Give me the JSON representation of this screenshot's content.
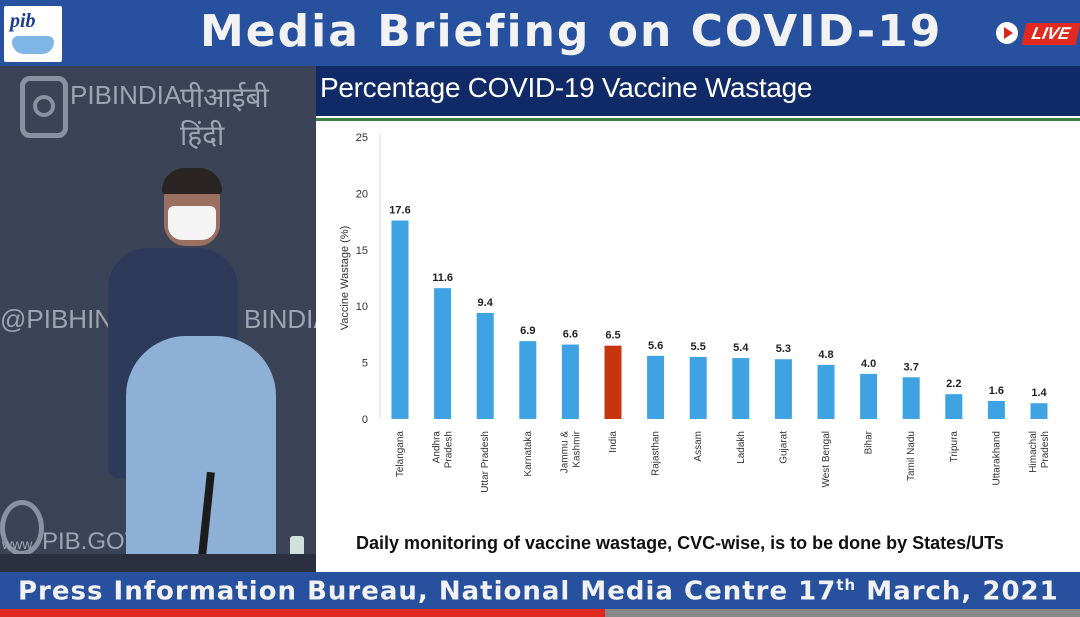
{
  "header": {
    "logo_text": "pib",
    "title": "Media Briefing on COVID-19",
    "live_label": "LIVE"
  },
  "video_backdrop": {
    "handle_1": "PIBINDIA",
    "hindi_text": "पीआईबी हिंदी",
    "handle_2": "@PIBHINDI",
    "handle_3": "BINDIA",
    "website": "PIB.GOV",
    "globe_text": "www"
  },
  "chart_panel": {
    "title": "Percentage COVID-19 Vaccine Wastage",
    "footnote": "Daily monitoring of vaccine wastage, CVC-wise, is to be done by States/UTs"
  },
  "chart_data": {
    "type": "bar",
    "title": "Percentage COVID-19 Vaccine Wastage",
    "ylabel": "Vaccine Wastage (%)",
    "xlabel": "",
    "ylim": [
      0,
      25
    ],
    "yticks": [
      0,
      5,
      10,
      15,
      20,
      25
    ],
    "grid": false,
    "categories": [
      "Telangana",
      "Andhra Pradesh",
      "Uttar Pradesh",
      "Karnataka",
      "Jammu & Kashmir",
      "India",
      "Rajasthan",
      "Assam",
      "Ladakh",
      "Gujarat",
      "West Bengal",
      "Bihar",
      "Tamil Nadu",
      "Tripura",
      "Uttarakhand",
      "Himachal Pradesh"
    ],
    "category_label_lines": [
      [
        "Telangana"
      ],
      [
        "Andhra",
        "Pradesh"
      ],
      [
        "Uttar Pradesh"
      ],
      [
        "Karnataka"
      ],
      [
        "Jammu &",
        "Kashmir"
      ],
      [
        "India"
      ],
      [
        "Rajasthan"
      ],
      [
        "Assam"
      ],
      [
        "Ladakh"
      ],
      [
        "Gujarat"
      ],
      [
        "West Bengal"
      ],
      [
        "Bihar"
      ],
      [
        "Tamil Nadu"
      ],
      [
        "Tripura"
      ],
      [
        "Uttarakhand"
      ],
      [
        "Himachal",
        "Pradesh"
      ]
    ],
    "values": [
      17.6,
      11.6,
      9.4,
      6.9,
      6.6,
      6.5,
      5.6,
      5.5,
      5.4,
      5.3,
      4.8,
      4.0,
      3.7,
      2.2,
      1.6,
      1.4
    ],
    "data_labels": [
      "17.6",
      "11.6",
      "9.4",
      "6.9",
      "6.6",
      "6.5",
      "5.6",
      "5.5",
      "5.4",
      "5.3",
      "4.8",
      "4.0",
      "3.7",
      "2.2",
      "1.6",
      "1.4"
    ],
    "colors": {
      "default": "#3fa3e3",
      "highlight": "#c8350d",
      "highlight_category": "India"
    }
  },
  "footer": {
    "text": "Press Information Bureau, National Media Centre  17th March, 2021",
    "progress": 0.56
  },
  "colors": {
    "header_blue": "#27519e",
    "title_navy": "#0f2a66",
    "live_red": "#e02a20"
  }
}
